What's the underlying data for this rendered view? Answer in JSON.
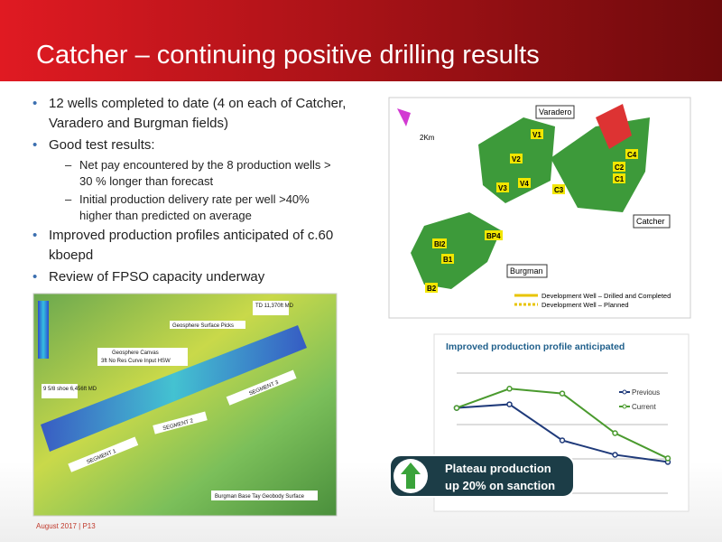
{
  "header": {
    "title": "Catcher – continuing positive drilling results"
  },
  "bullets": [
    {
      "text": "12 wells completed to date (4 on each of Catcher,  Varadero and Burgman fields)"
    },
    {
      "text": "Good test results:",
      "sub": [
        "Net pay encountered by the 8 production wells > 30 % longer than forecast",
        "Initial production delivery rate per well >40% higher than predicted on average"
      ]
    },
    {
      "text": "Improved production profiles anticipated of c.60 kboepd"
    },
    {
      "text": "Review of FPSO capacity underway"
    }
  ],
  "map": {
    "fields": [
      "Varadero",
      "Catcher",
      "Burgman"
    ],
    "scale": "2Km",
    "wells": [
      "V1",
      "V2",
      "V3",
      "V4",
      "C1",
      "C2",
      "C3",
      "C4",
      "B1",
      "B2",
      "BP4",
      "BI2"
    ],
    "legend": [
      "Development Well – Drilled and Completed",
      "Development Well – Planned"
    ]
  },
  "seismic": {
    "labels": [
      "TD 11,370ft MD",
      "Geosphere Surface Picks",
      "Geosphere Canvas",
      "3ft No Res Curve Input HSW",
      "9 5/8 shoe 6,456ft MD",
      "SEGMENT 1",
      "SEGMENT 2",
      "SEGMENT 3",
      "Burgman Base Tay Geobody Surface"
    ]
  },
  "chart_data": {
    "type": "line",
    "title": "Improved production profile anticipated",
    "categories": [
      null,
      null,
      null,
      null,
      null
    ],
    "ylim": [
      0,
      100
    ],
    "series": [
      {
        "name": "Previous",
        "color": "#1f3a7a",
        "values": [
          71,
          74,
          44,
          32,
          26
        ]
      },
      {
        "name": "Current",
        "color": "#4a9a2e",
        "values": [
          71,
          87,
          83,
          50,
          29
        ]
      }
    ]
  },
  "callout": {
    "lines": [
      "Plateau production",
      "up 20% on sanction"
    ]
  },
  "footer": "August 2017 | P13"
}
